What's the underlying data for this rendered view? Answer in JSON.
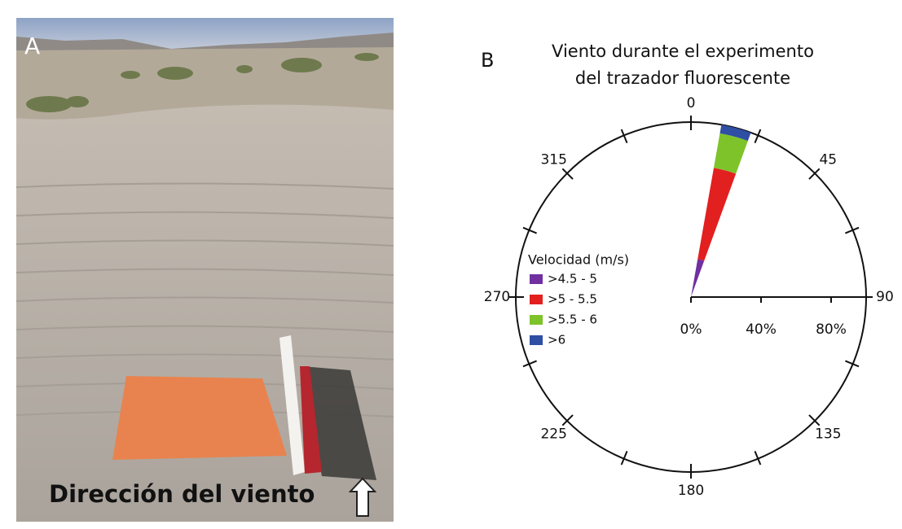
{
  "photo": {
    "panel_label": "A",
    "caption": "Dirección del viento"
  },
  "chart_data": {
    "type": "windrose",
    "panel_label": "B",
    "title_lines": [
      "Viento durante el experimento",
      "del trazador fluorescente"
    ],
    "legend_title": "Velocidad (m/s)",
    "directions": [
      15
    ],
    "series": [
      {
        "name": ">4.5 - 5",
        "color": "#7030a0",
        "values": [
          22
        ]
      },
      {
        "name": ">5 - 5.5",
        "color": "#e2201f",
        "values": [
          53
        ]
      },
      {
        "name": ">5.5 - 6",
        "color": "#7ec32a",
        "values": [
          20
        ]
      },
      {
        "name": ">6",
        "color": "#2e4fa3",
        "values": [
          5
        ]
      }
    ],
    "rlim": [
      0,
      100
    ],
    "rticks": [
      {
        "value": 0,
        "label": "0%"
      },
      {
        "value": 40,
        "label": "40%"
      },
      {
        "value": 80,
        "label": "80%"
      }
    ],
    "direction_ticks": [
      0,
      45,
      90,
      135,
      180,
      225,
      270,
      315
    ],
    "direction_minor_ticks": [
      22.5,
      67.5,
      112.5,
      157.5,
      202.5,
      247.5,
      292.5,
      337.5
    ]
  }
}
